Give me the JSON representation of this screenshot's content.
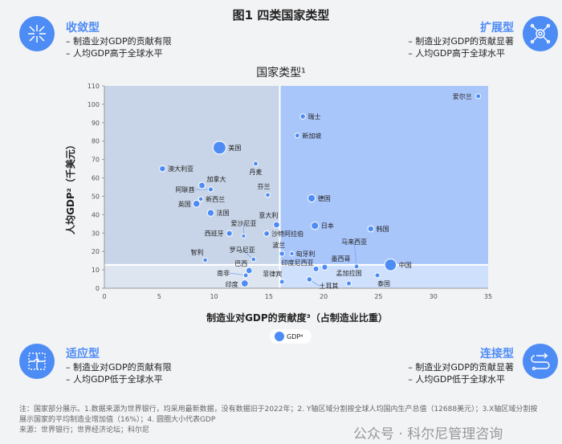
{
  "title": "图1 四类国家类型",
  "quadrants": {
    "tl": {
      "name": "收敛型",
      "lines": [
        "– 制造业对GDP的贡献有限",
        "– 人均GDP高于全球水平"
      ],
      "icon": "converge-arrows-icon"
    },
    "tr": {
      "name": "扩展型",
      "lines": [
        "– 制造业对GDP的贡献显著",
        "– 人均GDP高于全球水平"
      ],
      "icon": "network-gear-icon"
    },
    "bl": {
      "name": "适应型",
      "lines": [
        "– 制造业对GDP的贡献有限",
        "– 人均GDP低于全球水平"
      ],
      "icon": "puzzle-icon"
    },
    "br": {
      "name": "连接型",
      "lines": [
        "– 制造业对GDP的贡献显著",
        "– 人均GDP低于全球水平"
      ],
      "icon": "connection-path-icon"
    }
  },
  "notes": [
    "注：国家部分展示。1.数据来源为世界银行，均采用最新数据，没有数据旧于2022年；2. Y轴区域分割按全球人均国内生产总值（12688美元）；3.X轴区域分割按展示国家的平均制造业增加值（16%）；4. 圆圈大小代表GDP",
    "来源：世界银行；世界经济论坛；科尔尼"
  ],
  "watermark": "公众号 · 科尔尼管理咨询",
  "chart_data": {
    "type": "scatter",
    "title": "国家类型¹",
    "xlabel": "制造业对GDP的贡献度³（占制造业比重）",
    "ylabel": "人均GDP²（千美元）",
    "xlim": [
      0,
      35
    ],
    "ylim": [
      0,
      110
    ],
    "xticks": [
      0,
      5,
      10,
      15,
      20,
      25,
      30,
      35
    ],
    "yticks": [
      0,
      10,
      20,
      30,
      40,
      50,
      60,
      70,
      80,
      90,
      100,
      110
    ],
    "x_split": 16,
    "y_split": 12.688,
    "legend": "GDP⁴",
    "legend_position": "bottom",
    "colors": {
      "point": "#4e8cf5",
      "tl": "#c8d5e8",
      "tr": "#a9c6fb",
      "bl": "#dde5f1",
      "br": "#cfe0fd"
    },
    "points": [
      {
        "name": "爱尔兰",
        "x": 34.1,
        "y": 104.4,
        "gdp": 0.5
      },
      {
        "name": "瑞士",
        "x": 18.1,
        "y": 93.4,
        "gdp": 0.8
      },
      {
        "name": "新加坡",
        "x": 17.6,
        "y": 83,
        "gdp": 0.5
      },
      {
        "name": "美国",
        "x": 10.5,
        "y": 76.4,
        "gdp": 25
      },
      {
        "name": "丹麦",
        "x": 13.8,
        "y": 67.7,
        "gdp": 0.4
      },
      {
        "name": "澳大利亚",
        "x": 5.3,
        "y": 65,
        "gdp": 1.7
      },
      {
        "name": "加拿大",
        "x": 8.9,
        "y": 55.9,
        "gdp": 2.1
      },
      {
        "name": "阿联酋",
        "x": 9.7,
        "y": 53.7,
        "gdp": 0.5
      },
      {
        "name": "芬兰",
        "x": 14.9,
        "y": 50.7,
        "gdp": 0.3
      },
      {
        "name": "德国",
        "x": 18.9,
        "y": 48.9,
        "gdp": 4.1
      },
      {
        "name": "新西兰",
        "x": 8.8,
        "y": 48.5,
        "gdp": 0.25
      },
      {
        "name": "英国",
        "x": 8.4,
        "y": 45.9,
        "gdp": 3.1
      },
      {
        "name": "法国",
        "x": 9.7,
        "y": 41,
        "gdp": 2.8
      },
      {
        "name": "意大利",
        "x": 15.7,
        "y": 34.5,
        "gdp": 2.0
      },
      {
        "name": "日本",
        "x": 19.2,
        "y": 34,
        "gdp": 4.2
      },
      {
        "name": "韩国",
        "x": 24.3,
        "y": 32.3,
        "gdp": 1.7
      },
      {
        "name": "西班牙",
        "x": 11.4,
        "y": 29.8,
        "gdp": 1.4
      },
      {
        "name": "爱沙尼亚",
        "x": 12.7,
        "y": 28.4,
        "gdp": 0.04
      },
      {
        "name": "沙特阿拉伯",
        "x": 14.8,
        "y": 29.7,
        "gdp": 1.1
      },
      {
        "name": "波兰",
        "x": 16.2,
        "y": 18.8,
        "gdp": 0.7
      },
      {
        "name": "匈牙利",
        "x": 17.1,
        "y": 18.8,
        "gdp": 0.18
      },
      {
        "name": "罗马尼亚",
        "x": 13.6,
        "y": 15.7,
        "gdp": 0.3
      },
      {
        "name": "智利",
        "x": 9.2,
        "y": 15.3,
        "gdp": 0.3
      },
      {
        "name": "墨西哥",
        "x": 20.1,
        "y": 11.4,
        "gdp": 1.4
      },
      {
        "name": "印度尼西亚",
        "x": 19.3,
        "y": 10.5,
        "gdp": 1.3
      },
      {
        "name": "马来西亚",
        "x": 23,
        "y": 11.8,
        "gdp": 0.4
      },
      {
        "name": "中国",
        "x": 26.1,
        "y": 12.7,
        "gdp": 18
      },
      {
        "name": "巴西",
        "x": 13.2,
        "y": 9.6,
        "gdp": 1.9
      },
      {
        "name": "南非",
        "x": 12.9,
        "y": 7,
        "gdp": 0.4
      },
      {
        "name": "泰国",
        "x": 24.9,
        "y": 7,
        "gdp": 0.5
      },
      {
        "name": "孟加拉国",
        "x": 22.3,
        "y": 2.6,
        "gdp": 0.46
      },
      {
        "name": "土耳其",
        "x": 18.7,
        "y": 4.8,
        "gdp": 0.9
      },
      {
        "name": "菲律宾",
        "x": 16.2,
        "y": 3.5,
        "gdp": 0.4
      },
      {
        "name": "印度",
        "x": 12.8,
        "y": 2.6,
        "gdp": 3.4
      }
    ]
  }
}
